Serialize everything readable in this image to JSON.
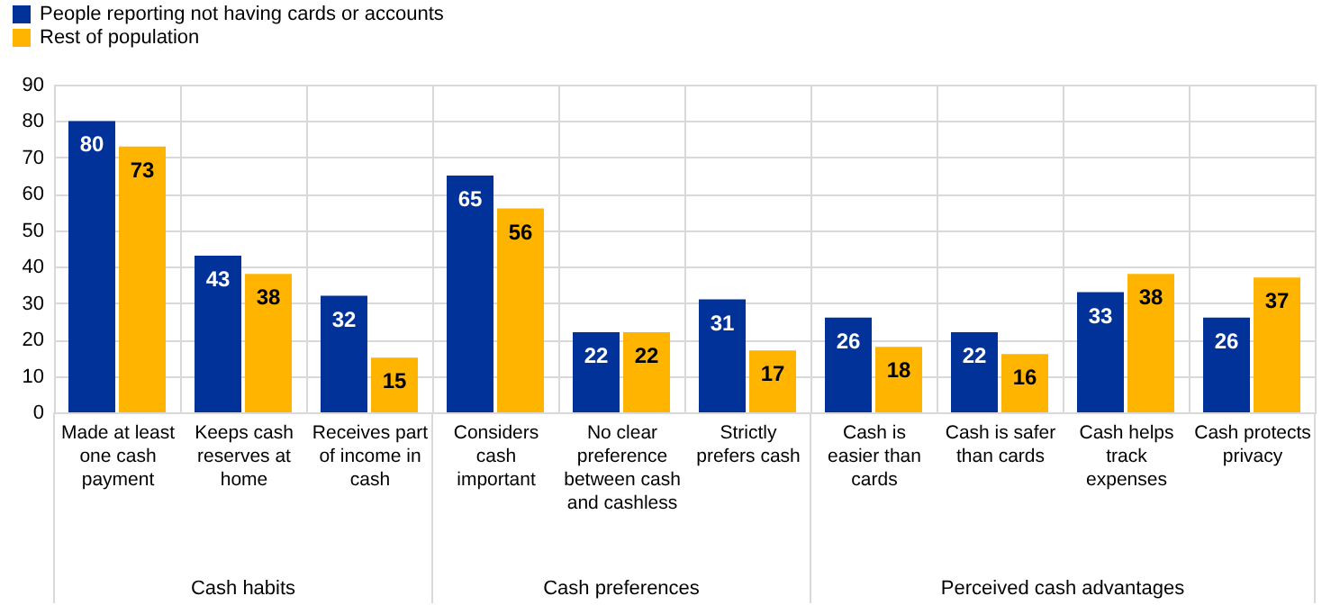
{
  "chart_data": {
    "type": "bar",
    "categories": [
      "Made at least one cash payment",
      "Keeps cash reserves at home",
      "Receives part of income in cash",
      "Considers cash important",
      "No clear preference between cash and cashless",
      "Strictly prefers cash",
      "Cash is easier than cards",
      "Cash is safer than cards",
      "Cash helps track expenses",
      "Cash protects privacy"
    ],
    "series": [
      {
        "name": "People reporting not having cards or accounts",
        "color": "#003299",
        "values": [
          80,
          43,
          32,
          65,
          22,
          31,
          26,
          22,
          33,
          26
        ]
      },
      {
        "name": "Rest of population",
        "color": "#ffb400",
        "values": [
          73,
          38,
          15,
          56,
          22,
          17,
          18,
          16,
          38,
          37
        ]
      }
    ],
    "annotations": [
      "Cash habits",
      "Cash preferences",
      "Perceived cash advantages"
    ],
    "ylim": [
      0,
      90
    ],
    "yticks": [
      0,
      10,
      20,
      30,
      40,
      50,
      60,
      70,
      80,
      90
    ],
    "grid": true,
    "legend": "top left",
    "data_labels": true
  }
}
